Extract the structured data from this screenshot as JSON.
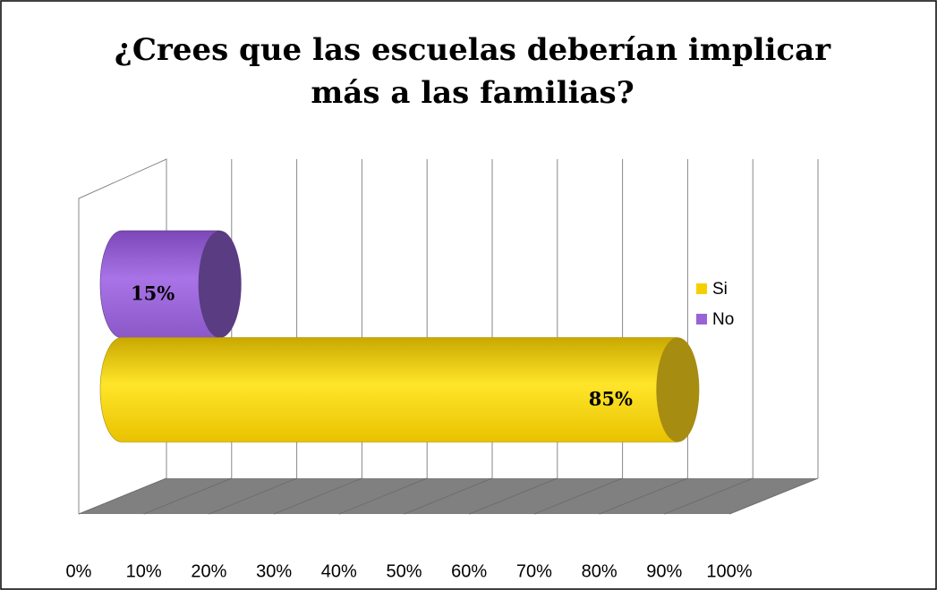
{
  "chart_data": {
    "type": "bar3d",
    "title": [
      "¿Crees que las escuelas deberían implicar",
      "más a las familias?"
    ],
    "categories": [
      null
    ],
    "series": [
      {
        "name": "Si",
        "color": "#f5d000",
        "values": [
          85
        ],
        "value_labels": [
          "85%"
        ]
      },
      {
        "name": "No",
        "color": "#9a62d6",
        "values": [
          15
        ],
        "value_labels": [
          "15%"
        ]
      }
    ],
    "xlim": [
      0,
      100
    ],
    "xticks": [
      {
        "value": 0,
        "label": "0%"
      },
      {
        "value": 10,
        "label": "10%"
      },
      {
        "value": 20,
        "label": "20%"
      },
      {
        "value": 30,
        "label": "30%"
      },
      {
        "value": 40,
        "label": "40%"
      },
      {
        "value": 50,
        "label": "50%"
      },
      {
        "value": 60,
        "label": "60%"
      },
      {
        "value": 70,
        "label": "70%"
      },
      {
        "value": 80,
        "label": "80%"
      },
      {
        "value": 90,
        "label": "90%"
      },
      {
        "value": 100,
        "label": "100%"
      }
    ],
    "grid": true,
    "legend": "right"
  }
}
